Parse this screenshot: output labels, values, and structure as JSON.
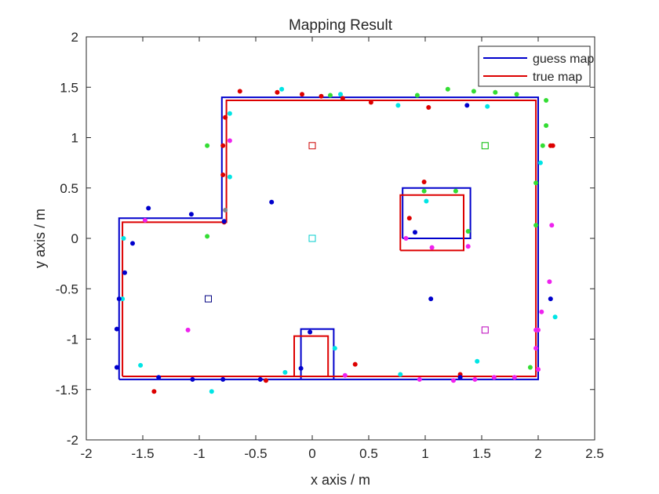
{
  "chart_data": {
    "type": "line",
    "title": "Mapping Result",
    "xlabel": "x axis / m",
    "ylabel": "y axis / m",
    "xlim": [
      -2,
      2.5
    ],
    "ylim": [
      -2,
      2
    ],
    "xticks": [
      "-2",
      "-1.5",
      "-1",
      "-0.5",
      "0",
      "0.5",
      "1",
      "1.5",
      "2",
      "2.5"
    ],
    "yticks": [
      "-2",
      "-1.5",
      "-1",
      "-0.5",
      "0",
      "0.5",
      "1",
      "1.5",
      "2"
    ],
    "grid": false,
    "legend_position": "top-right",
    "series": [
      {
        "name": "guess map",
        "color": "#0000cc",
        "segments": [
          [
            [
              -1.71,
              -1.4
            ],
            [
              2.0,
              -1.4
            ],
            [
              2.0,
              1.4
            ],
            [
              -0.8,
              1.4
            ],
            [
              -0.8,
              0.2
            ],
            [
              -1.71,
              0.2
            ],
            [
              -1.71,
              -1.4
            ]
          ],
          [
            [
              0.8,
              0.0
            ],
            [
              1.4,
              0.0
            ],
            [
              1.4,
              0.5
            ],
            [
              0.8,
              0.5
            ],
            [
              0.8,
              0.0
            ]
          ],
          [
            [
              -0.1,
              -1.4
            ],
            [
              -0.1,
              -0.9
            ],
            [
              0.19,
              -0.9
            ],
            [
              0.19,
              -1.4
            ]
          ]
        ]
      },
      {
        "name": "true map",
        "color": "#dd0000",
        "segments": [
          [
            [
              -1.68,
              -1.37
            ],
            [
              1.98,
              -1.37
            ],
            [
              1.98,
              1.37
            ],
            [
              -0.76,
              1.37
            ],
            [
              -0.76,
              0.16
            ],
            [
              -1.68,
              0.16
            ],
            [
              -1.68,
              -1.37
            ]
          ],
          [
            [
              0.78,
              -0.12
            ],
            [
              1.34,
              -0.12
            ],
            [
              1.34,
              0.43
            ],
            [
              0.78,
              0.43
            ],
            [
              0.78,
              -0.12
            ]
          ],
          [
            [
              -0.16,
              -1.37
            ],
            [
              -0.16,
              -0.97
            ],
            [
              0.14,
              -0.97
            ],
            [
              0.14,
              -1.37
            ]
          ]
        ]
      }
    ],
    "landmarks": [
      {
        "x": 0.0,
        "y": 0.92,
        "color": "#cc0000"
      },
      {
        "x": 1.53,
        "y": 0.92,
        "color": "#00bb00"
      },
      {
        "x": 0.0,
        "y": 0.0,
        "color": "#00cccc"
      },
      {
        "x": -0.92,
        "y": -0.6,
        "color": "#000080"
      },
      {
        "x": 1.53,
        "y": -0.91,
        "color": "#bb00bb"
      }
    ],
    "points": [
      {
        "x": -0.64,
        "y": 1.46,
        "color": "#dd0000"
      },
      {
        "x": -0.31,
        "y": 1.45,
        "color": "#dd0000"
      },
      {
        "x": -0.27,
        "y": 1.48,
        "color": "#00e5e5"
      },
      {
        "x": -0.09,
        "y": 1.43,
        "color": "#dd0000"
      },
      {
        "x": 0.08,
        "y": 1.41,
        "color": "#dd0000"
      },
      {
        "x": 0.16,
        "y": 1.42,
        "color": "#33dd33"
      },
      {
        "x": 0.25,
        "y": 1.43,
        "color": "#00e5e5"
      },
      {
        "x": 0.27,
        "y": 1.39,
        "color": "#dd0000"
      },
      {
        "x": 0.52,
        "y": 1.35,
        "color": "#dd0000"
      },
      {
        "x": 0.76,
        "y": 1.32,
        "color": "#00e5e5"
      },
      {
        "x": 0.93,
        "y": 1.42,
        "color": "#33dd33"
      },
      {
        "x": 1.03,
        "y": 1.3,
        "color": "#dd0000"
      },
      {
        "x": 1.2,
        "y": 1.48,
        "color": "#33dd33"
      },
      {
        "x": 1.37,
        "y": 1.32,
        "color": "#0000cc"
      },
      {
        "x": 1.43,
        "y": 1.46,
        "color": "#33dd33"
      },
      {
        "x": 1.55,
        "y": 1.31,
        "color": "#00e5e5"
      },
      {
        "x": 1.62,
        "y": 1.45,
        "color": "#33dd33"
      },
      {
        "x": 1.81,
        "y": 1.43,
        "color": "#33dd33"
      },
      {
        "x": 2.07,
        "y": 1.37,
        "color": "#33dd33"
      },
      {
        "x": 2.07,
        "y": 1.12,
        "color": "#33dd33"
      },
      {
        "x": 2.04,
        "y": 0.92,
        "color": "#33dd33"
      },
      {
        "x": 2.11,
        "y": 0.92,
        "color": "#dd0000"
      },
      {
        "x": 2.13,
        "y": 0.92,
        "color": "#dd0000"
      },
      {
        "x": 2.02,
        "y": 0.75,
        "color": "#00e5e5"
      },
      {
        "x": 1.98,
        "y": 0.55,
        "color": "#33dd33"
      },
      {
        "x": 1.98,
        "y": 0.13,
        "color": "#33dd33"
      },
      {
        "x": 2.12,
        "y": 0.13,
        "color": "#ee22ee"
      },
      {
        "x": 2.1,
        "y": -0.43,
        "color": "#ee22ee"
      },
      {
        "x": 2.11,
        "y": -0.6,
        "color": "#0000cc"
      },
      {
        "x": 2.15,
        "y": -0.78,
        "color": "#00e5e5"
      },
      {
        "x": 2.03,
        "y": -0.73,
        "color": "#ee22ee"
      },
      {
        "x": 2.0,
        "y": -0.91,
        "color": "#ee22ee"
      },
      {
        "x": 1.98,
        "y": -0.91,
        "color": "#ee22ee"
      },
      {
        "x": 1.98,
        "y": -1.09,
        "color": "#ee22ee"
      },
      {
        "x": 2.0,
        "y": -1.3,
        "color": "#ee22ee"
      },
      {
        "x": 1.93,
        "y": -1.28,
        "color": "#33dd33"
      },
      {
        "x": 1.79,
        "y": -1.38,
        "color": "#ee22ee"
      },
      {
        "x": 1.61,
        "y": -1.38,
        "color": "#ee22ee"
      },
      {
        "x": 1.44,
        "y": -1.4,
        "color": "#ee22ee"
      },
      {
        "x": 1.46,
        "y": -1.22,
        "color": "#00e5e5"
      },
      {
        "x": 1.31,
        "y": -1.35,
        "color": "#dd0000"
      },
      {
        "x": 1.31,
        "y": -1.38,
        "color": "#0000cc"
      },
      {
        "x": 1.25,
        "y": -1.41,
        "color": "#ee22ee"
      },
      {
        "x": 0.95,
        "y": -1.4,
        "color": "#ee22ee"
      },
      {
        "x": 0.78,
        "y": -1.35,
        "color": "#00e5e5"
      },
      {
        "x": 0.38,
        "y": -1.25,
        "color": "#dd0000"
      },
      {
        "x": 0.29,
        "y": -1.36,
        "color": "#ee22ee"
      },
      {
        "x": 0.2,
        "y": -1.09,
        "color": "#00e5e5"
      },
      {
        "x": -0.02,
        "y": -0.93,
        "color": "#0000cc"
      },
      {
        "x": -0.1,
        "y": -1.29,
        "color": "#0000cc"
      },
      {
        "x": -0.24,
        "y": -1.33,
        "color": "#00e5e5"
      },
      {
        "x": -0.41,
        "y": -1.41,
        "color": "#dd0000"
      },
      {
        "x": -0.46,
        "y": -1.4,
        "color": "#0000cc"
      },
      {
        "x": -0.79,
        "y": -1.4,
        "color": "#0000cc"
      },
      {
        "x": -0.89,
        "y": -1.52,
        "color": "#00e5e5"
      },
      {
        "x": -1.06,
        "y": -1.4,
        "color": "#0000cc"
      },
      {
        "x": -1.1,
        "y": -0.91,
        "color": "#ee22ee"
      },
      {
        "x": -1.36,
        "y": -1.38,
        "color": "#0000cc"
      },
      {
        "x": -1.4,
        "y": -1.52,
        "color": "#dd0000"
      },
      {
        "x": -1.52,
        "y": -1.26,
        "color": "#00e5e5"
      },
      {
        "x": -1.73,
        "y": -1.28,
        "color": "#0000cc"
      },
      {
        "x": -1.73,
        "y": -0.9,
        "color": "#0000cc"
      },
      {
        "x": -1.68,
        "y": -0.6,
        "color": "#00e5e5"
      },
      {
        "x": -1.71,
        "y": -0.6,
        "color": "#0000cc"
      },
      {
        "x": -1.66,
        "y": -0.34,
        "color": "#0000cc"
      },
      {
        "x": -1.59,
        "y": -0.05,
        "color": "#0000cc"
      },
      {
        "x": -1.67,
        "y": 0.0,
        "color": "#00e5e5"
      },
      {
        "x": -1.48,
        "y": 0.18,
        "color": "#ee22ee"
      },
      {
        "x": -1.45,
        "y": 0.3,
        "color": "#0000cc"
      },
      {
        "x": -1.07,
        "y": 0.24,
        "color": "#0000cc"
      },
      {
        "x": -0.93,
        "y": 0.02,
        "color": "#33dd33"
      },
      {
        "x": -0.78,
        "y": 0.16,
        "color": "#dd0000"
      },
      {
        "x": -0.78,
        "y": 0.17,
        "color": "#0000cc"
      },
      {
        "x": -0.77,
        "y": 0.28,
        "color": "#888888"
      },
      {
        "x": -0.73,
        "y": 0.61,
        "color": "#00e5e5"
      },
      {
        "x": -0.79,
        "y": 0.63,
        "color": "#dd0000"
      },
      {
        "x": -0.79,
        "y": 0.92,
        "color": "#dd0000"
      },
      {
        "x": -0.73,
        "y": 0.97,
        "color": "#ee22ee"
      },
      {
        "x": -0.93,
        "y": 0.92,
        "color": "#33dd33"
      },
      {
        "x": -0.77,
        "y": 1.2,
        "color": "#dd0000"
      },
      {
        "x": -0.73,
        "y": 1.24,
        "color": "#00e5e5"
      },
      {
        "x": -0.36,
        "y": 0.36,
        "color": "#0000cc"
      },
      {
        "x": 0.99,
        "y": 0.56,
        "color": "#dd0000"
      },
      {
        "x": 0.99,
        "y": 0.47,
        "color": "#33dd33"
      },
      {
        "x": 1.27,
        "y": 0.47,
        "color": "#33dd33"
      },
      {
        "x": 1.01,
        "y": 0.37,
        "color": "#00e5e5"
      },
      {
        "x": 0.86,
        "y": 0.2,
        "color": "#dd0000"
      },
      {
        "x": 0.91,
        "y": 0.06,
        "color": "#0000cc"
      },
      {
        "x": 1.38,
        "y": 0.07,
        "color": "#33dd33"
      },
      {
        "x": 0.83,
        "y": 0.0,
        "color": "#ee22ee"
      },
      {
        "x": 1.06,
        "y": -0.09,
        "color": "#ee22ee"
      },
      {
        "x": 1.38,
        "y": -0.08,
        "color": "#ee22ee"
      },
      {
        "x": 1.05,
        "y": -0.6,
        "color": "#0000cc"
      }
    ]
  }
}
